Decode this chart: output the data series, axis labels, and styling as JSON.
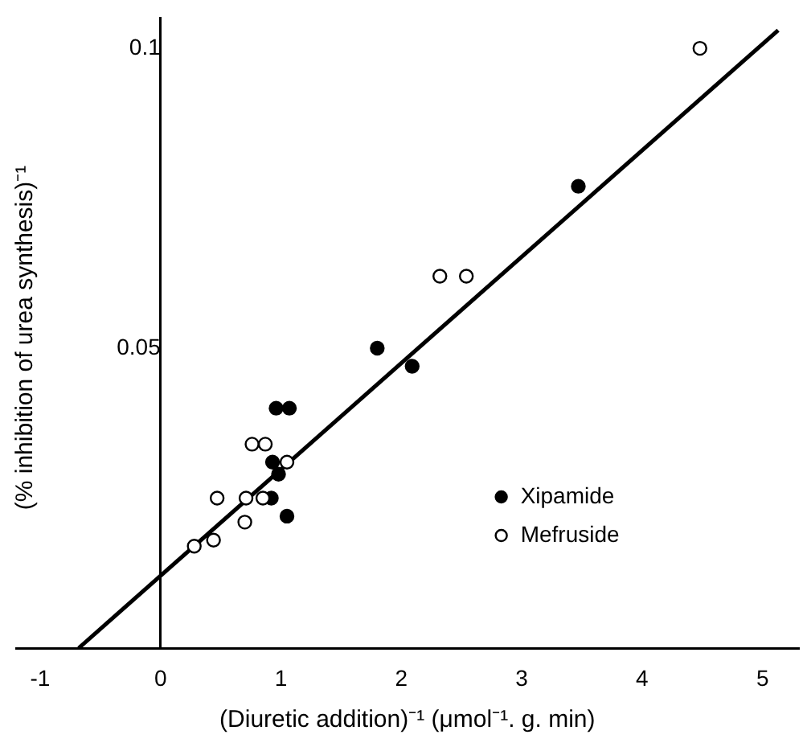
{
  "chart_data": {
    "type": "scatter",
    "xlabel": "(Diuretic addition)⁻¹ (μmol⁻¹. g. min)",
    "ylabel": "(% inhibition of urea synthesis)⁻¹",
    "xlim": [
      -1.2,
      5.3
    ],
    "xticks": [
      -1,
      0,
      1,
      2,
      3,
      4,
      5
    ],
    "ylim": [
      0,
      0.105
    ],
    "yticks": [
      0.05,
      0.1
    ],
    "grid": false,
    "legend": "right",
    "marker": "circle",
    "series": [
      {
        "name": "Xipamide",
        "color": "#000000",
        "x": [
          1.8,
          2.09,
          0.96,
          1.07,
          0.93,
          0.98,
          0.92,
          1.05,
          3.47
        ],
        "values": [
          0.05,
          0.047,
          0.04,
          0.04,
          0.031,
          0.029,
          0.025,
          0.022,
          0.077
        ]
      },
      {
        "name": "Mefruside",
        "color": "#ffffff",
        "x": [
          4.48,
          2.32,
          2.54,
          0.76,
          0.87,
          1.05,
          0.47,
          0.71,
          0.85,
          0.7,
          0.28,
          0.44
        ],
        "values": [
          0.1,
          0.062,
          0.062,
          0.034,
          0.034,
          0.031,
          0.025,
          0.025,
          0.025,
          0.021,
          0.017,
          0.018
        ]
      },
      {
        "type": "line",
        "color": "#000000",
        "marker": "none",
        "x": [
          -0.68,
          5.13
        ],
        "values": [
          0,
          0.103
        ]
      }
    ]
  }
}
